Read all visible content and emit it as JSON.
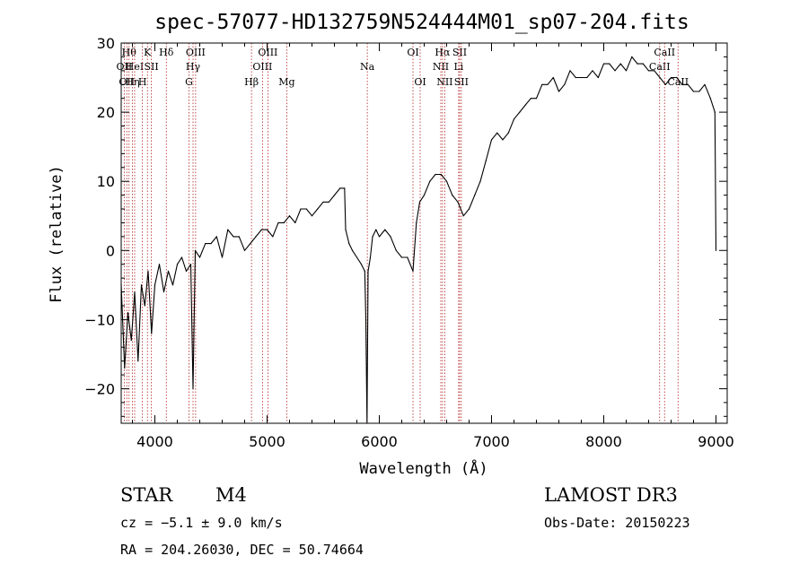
{
  "chart_data": {
    "type": "line",
    "title": "spec-57077-HD132759N524444M01_sp07-204.fits",
    "xlabel": "Wavelength (Å)",
    "ylabel": "Flux (relative)",
    "xlim": [
      3700,
      9100
    ],
    "ylim": [
      -25,
      30
    ],
    "xticks": [
      4000,
      5000,
      6000,
      7000,
      8000,
      9000
    ],
    "yticks": [
      -20,
      -10,
      0,
      10,
      20,
      30
    ],
    "series": [
      {
        "name": "flux",
        "x": [
          3700,
          3730,
          3760,
          3790,
          3820,
          3850,
          3880,
          3910,
          3940,
          3970,
          4000,
          4040,
          4080,
          4120,
          4160,
          4200,
          4240,
          4280,
          4320,
          4340,
          4360,
          4400,
          4450,
          4500,
          4550,
          4600,
          4650,
          4700,
          4750,
          4800,
          4850,
          4900,
          4950,
          5000,
          5050,
          5100,
          5150,
          5200,
          5250,
          5300,
          5350,
          5400,
          5450,
          5500,
          5550,
          5600,
          5650,
          5690,
          5700,
          5730,
          5760,
          5800,
          5840,
          5870,
          5880,
          5890,
          5900,
          5910,
          5920,
          5940,
          5970,
          6000,
          6050,
          6100,
          6150,
          6200,
          6250,
          6300,
          6330,
          6360,
          6400,
          6450,
          6500,
          6550,
          6600,
          6650,
          6700,
          6750,
          6800,
          6850,
          6900,
          6950,
          7000,
          7050,
          7100,
          7150,
          7200,
          7250,
          7300,
          7350,
          7400,
          7450,
          7500,
          7550,
          7600,
          7650,
          7700,
          7750,
          7800,
          7850,
          7900,
          7950,
          8000,
          8050,
          8100,
          8150,
          8200,
          8250,
          8300,
          8350,
          8400,
          8450,
          8500,
          8550,
          8600,
          8650,
          8700,
          8750,
          8800,
          8850,
          8900,
          8950,
          8990,
          9000
        ],
        "y": [
          -5,
          -17,
          -9,
          -13,
          -6,
          -16,
          -5,
          -8,
          -3,
          -12,
          -5,
          -2,
          -6,
          -3,
          -5,
          -2,
          -1,
          -3,
          -2,
          -20,
          0,
          -1,
          1,
          1,
          2,
          -1,
          3,
          2,
          2,
          0,
          1,
          2,
          3,
          3,
          2,
          4,
          4,
          5,
          4,
          6,
          6,
          5,
          6,
          7,
          7,
          8,
          9,
          9,
          3,
          1,
          0,
          -1,
          -2,
          -3,
          -10,
          -25,
          -3,
          -2,
          -1,
          2,
          3,
          2,
          3,
          2,
          0,
          -1,
          -1,
          -3,
          4,
          7,
          8,
          10,
          11,
          11,
          10,
          8,
          7,
          5,
          6,
          8,
          10,
          13,
          16,
          17,
          16,
          17,
          19,
          20,
          21,
          22,
          22,
          24,
          24,
          25,
          23,
          24,
          26,
          25,
          25,
          25,
          26,
          25,
          27,
          27,
          26,
          27,
          26,
          28,
          27,
          27,
          26,
          26,
          25,
          24,
          25,
          25,
          24,
          24,
          23,
          23,
          24,
          22,
          20,
          0
        ]
      }
    ],
    "line_markers": [
      {
        "wl": 3727,
        "label": "OII",
        "row": 2
      },
      {
        "wl": 3750,
        "label": "OII",
        "row": 3
      },
      {
        "wl": 3770,
        "label": "Hθ",
        "row": 1
      },
      {
        "wl": 3800,
        "label": "Hη",
        "row": 3
      },
      {
        "wl": 3820,
        "label": "HeI",
        "row": 2
      },
      {
        "wl": 3889,
        "label": "H",
        "row": 3
      },
      {
        "wl": 3934,
        "label": "K",
        "row": 1
      },
      {
        "wl": 3969,
        "label": "SII",
        "row": 2
      },
      {
        "wl": 4102,
        "label": "Hδ",
        "row": 1
      },
      {
        "wl": 4304,
        "label": "G",
        "row": 3
      },
      {
        "wl": 4340,
        "label": "Hγ",
        "row": 2
      },
      {
        "wl": 4363,
        "label": "OIII",
        "row": 1
      },
      {
        "wl": 4861,
        "label": "Hβ",
        "row": 3
      },
      {
        "wl": 4959,
        "label": "OIII",
        "row": 2
      },
      {
        "wl": 5007,
        "label": "OIII",
        "row": 1
      },
      {
        "wl": 5175,
        "label": "Mg",
        "row": 3
      },
      {
        "wl": 5893,
        "label": "Na",
        "row": 2
      },
      {
        "wl": 6300,
        "label": "OI",
        "row": 1
      },
      {
        "wl": 6364,
        "label": "OI",
        "row": 3
      },
      {
        "wl": 6548,
        "label": "NII",
        "row": 2
      },
      {
        "wl": 6563,
        "label": "Hα",
        "row": 1
      },
      {
        "wl": 6583,
        "label": "NII",
        "row": 3
      },
      {
        "wl": 6707,
        "label": "Li",
        "row": 2
      },
      {
        "wl": 6716,
        "label": "SII",
        "row": 1
      },
      {
        "wl": 6731,
        "label": "SII",
        "row": 3
      },
      {
        "wl": 8498,
        "label": "CaII",
        "row": 2
      },
      {
        "wl": 8542,
        "label": "CaII",
        "row": 1
      },
      {
        "wl": 8662,
        "label": "CaII",
        "row": 3
      }
    ]
  },
  "info": {
    "class": "STAR",
    "subclass": "M4",
    "survey": "LAMOST DR3",
    "cz": "cz = −5.1 ± 9.0 km/s",
    "obs_date": "Obs-Date: 20150223",
    "coords": "RA = 204.26030, DEC =  50.74664"
  }
}
